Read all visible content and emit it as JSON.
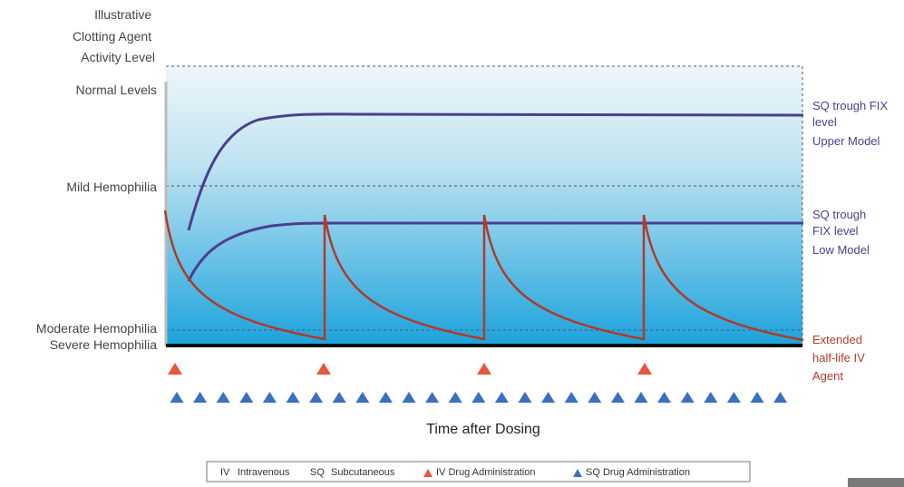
{
  "chart_data": {
    "type": "line",
    "title": "",
    "ylabel": "Illustrative Clotting Agent Activity Level",
    "xlabel": "Time after Dosing",
    "y_levels": [
      {
        "label": "Normal Levels"
      },
      {
        "label": "Mild Hemophilia"
      },
      {
        "label": "Moderate Hemophilia"
      },
      {
        "label": "Severe Hemophilia"
      }
    ],
    "series": [
      {
        "name_lines": [
          "SQ trough FIX",
          "level",
          "Upper Model"
        ],
        "color": "#4a3f8f"
      },
      {
        "name_lines": [
          "SQ trough",
          "FIX level",
          "Low Model"
        ],
        "color": "#4a3f8f"
      },
      {
        "name_lines": [
          "Extended",
          "half-life IV",
          "Agent"
        ],
        "color": "#b03a2a"
      }
    ],
    "iv_dose_count": 4,
    "sq_dose_count": 27,
    "colors": {
      "iv_marker": "#e8553e",
      "sq_marker": "#3b6fc0",
      "sq_curve": "#4a3f8f",
      "iv_curve": "#b03a2a",
      "area_top": "#eef6fa",
      "area_bottom": "#1ba3dc"
    },
    "legend": [
      {
        "abbr": "IV",
        "text": "Intravenous"
      },
      {
        "abbr": "SQ",
        "text": "Subcutaneous"
      },
      {
        "icon": "red-triangle",
        "text": "IV Drug Administration"
      },
      {
        "icon": "blue-triangle",
        "text": "SQ Drug Administration"
      }
    ]
  }
}
